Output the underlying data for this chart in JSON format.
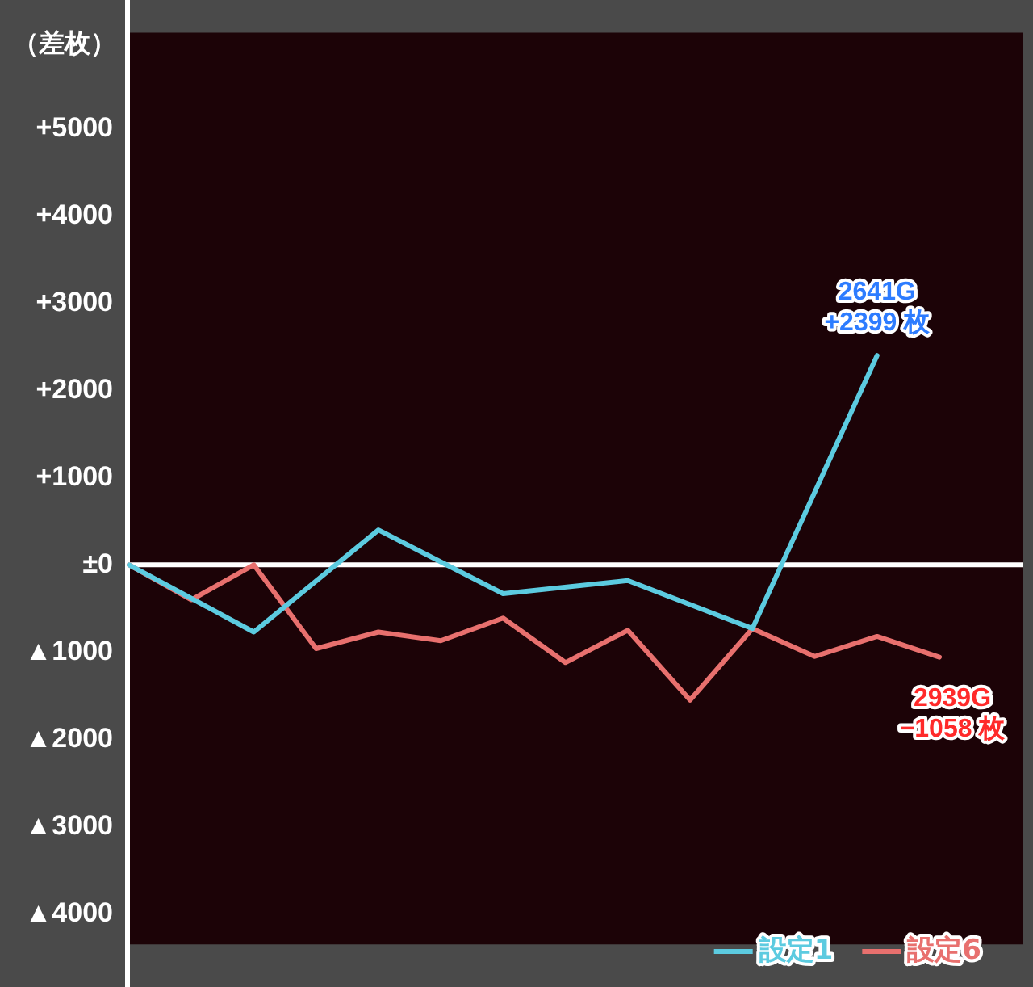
{
  "chart_data": {
    "type": "line",
    "ylabel": "（差枚）",
    "categories": [
      null,
      null,
      null,
      null,
      null,
      null,
      null,
      null,
      null,
      null,
      null,
      null,
      null,
      null
    ],
    "series": [
      {
        "name": "設定1",
        "color": "#5ccbe0",
        "values": [
          0,
          null,
          -770,
          null,
          400,
          null,
          -330,
          null,
          -180,
          null,
          -730,
          null,
          2399,
          null
        ]
      },
      {
        "name": "設定6",
        "color": "#e8706e",
        "values": [
          0,
          -400,
          0,
          -960,
          -770,
          -870,
          -610,
          -1120,
          -750,
          -1550,
          -730,
          -1050,
          -820,
          -1058
        ]
      }
    ],
    "ylim": [
      -4350,
      6100
    ],
    "yticks": [
      {
        "value": 5000,
        "label": "+5000"
      },
      {
        "value": 4000,
        "label": "+4000"
      },
      {
        "value": 3000,
        "label": "+3000"
      },
      {
        "value": 2000,
        "label": "+2000"
      },
      {
        "value": 1000,
        "label": "+1000"
      },
      {
        "value": 0,
        "label": "±0"
      },
      {
        "value": -1000,
        "label": "▲1000"
      },
      {
        "value": -2000,
        "label": "▲2000"
      },
      {
        "value": -3000,
        "label": "▲3000"
      },
      {
        "value": -4000,
        "label": "▲4000"
      }
    ],
    "ref_lines": [
      {
        "axis": "y",
        "value": 0,
        "color": "#ffffff"
      }
    ],
    "annotations": [
      "2641G\n+2399 枚",
      "2939G\n−1058 枚"
    ],
    "grid": false,
    "legend": "bottom right",
    "marker": "none",
    "line_style": "solid"
  }
}
